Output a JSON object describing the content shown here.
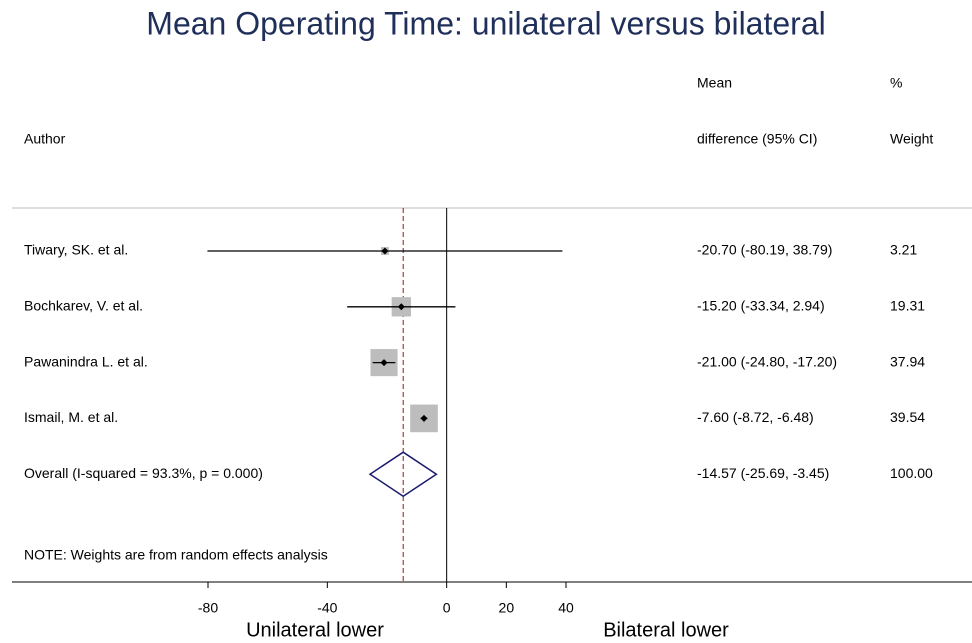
{
  "chart_data": {
    "type": "forest",
    "title": "Mean Operating Time: unilateral versus bilateral",
    "headers": {
      "author": "Author",
      "estimate": [
        "Mean",
        "difference (95% CI)"
      ],
      "weight": [
        "%",
        "Weight"
      ]
    },
    "studies": [
      {
        "name": "Tiwary, SK. et al.",
        "mean": -20.7,
        "lower": -80.19,
        "upper": 38.79,
        "weight": 3.21,
        "ci_label": "-20.70 (-80.19, 38.79)",
        "weight_label": "3.21"
      },
      {
        "name": "Bochkarev, V. et al.",
        "mean": -15.2,
        "lower": -33.34,
        "upper": 2.94,
        "weight": 19.31,
        "ci_label": "-15.20 (-33.34, 2.94)",
        "weight_label": "19.31"
      },
      {
        "name": "Pawanindra L. et al.",
        "mean": -21.0,
        "lower": -24.8,
        "upper": -17.2,
        "weight": 37.94,
        "ci_label": "-21.00 (-24.80, -17.20)",
        "weight_label": "37.94"
      },
      {
        "name": "Ismail, M. et al.",
        "mean": -7.6,
        "lower": -8.72,
        "upper": -6.48,
        "weight": 39.54,
        "ci_label": "-7.60 (-8.72, -6.48)",
        "weight_label": "39.54"
      }
    ],
    "overall": {
      "name": "Overall  (I-squared = 93.3%, p = 0.000)",
      "mean": -14.57,
      "lower": -25.69,
      "upper": -3.45,
      "weight": 100,
      "ci_label": "-14.57 (-25.69, -3.45)",
      "weight_label": "100.00"
    },
    "note": "NOTE: Weights are from random effects analysis",
    "xlim": [
      -80,
      40
    ],
    "xticks": [
      -80,
      -40,
      0,
      20,
      40
    ],
    "x_labels": {
      "left": "Unilateral lower",
      "right": "Bilateral lower"
    },
    "box_color": "#bdbdbd",
    "diamond_color": "#1a1a6e",
    "ref_color": "#8b1a1a"
  }
}
